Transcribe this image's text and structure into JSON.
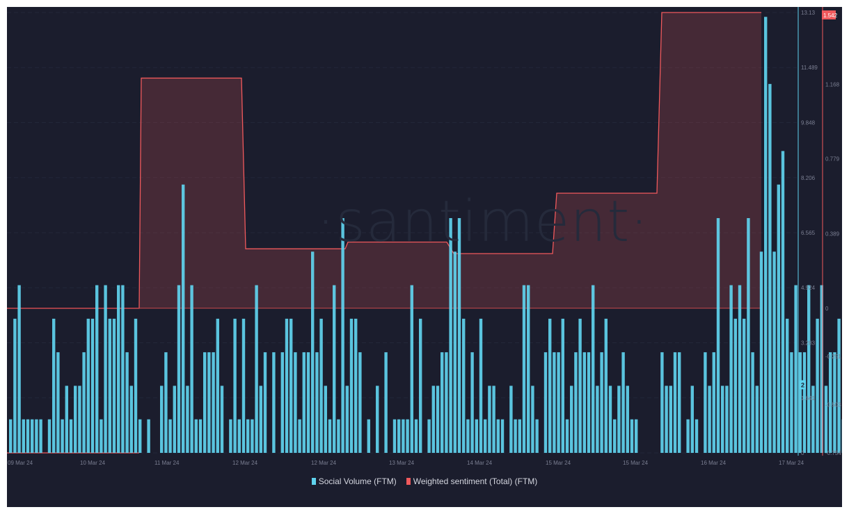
{
  "watermark": "·santiment·",
  "legend": [
    {
      "label": "Social Volume (FTM)",
      "color": "#5fd3ee"
    },
    {
      "label": "Weighted sentiment (Total) (FTM)",
      "color": "#f0595c"
    }
  ],
  "current_values": {
    "social_volume": "2",
    "weighted_sentiment": "1.542"
  },
  "chart_data": {
    "type": "bar",
    "title": "",
    "xlabel": "",
    "ylabel_left": "",
    "x_tick_labels": [
      "09 Mar 24",
      "10 Mar 24",
      "11 Mar 24",
      "12 Mar 24",
      "12 Mar 24",
      "13 Mar 24",
      "14 Mar 24",
      "15 Mar 24",
      "15 Mar 24",
      "16 Mar 24",
      "17 Mar 24"
    ],
    "y_axis_social_volume": {
      "ticks": [
        "13.13",
        "11.489",
        "9.848",
        "8.206",
        "6.565",
        "4.924",
        "3.283",
        "1.641",
        "0"
      ],
      "range": [
        0,
        13.13
      ]
    },
    "y_axis_sentiment": {
      "ticks": [
        "1.542",
        "1.168",
        "0.779",
        "0.389",
        "0",
        "-0.251",
        "-0.503",
        "-0.754"
      ],
      "range": [
        -0.754,
        1.542
      ]
    },
    "grid": true,
    "legend_position": "bottom",
    "series": [
      {
        "name": "Social Volume (FTM)",
        "type": "bar",
        "axis": "left",
        "values": [
          1,
          4,
          5,
          1,
          1,
          1,
          1,
          1,
          0,
          1,
          4,
          3,
          1,
          2,
          1,
          2,
          2,
          3,
          4,
          4,
          5,
          1,
          5,
          4,
          4,
          5,
          5,
          3,
          2,
          4,
          1,
          0,
          1,
          0,
          0,
          2,
          3,
          1,
          2,
          5,
          8,
          2,
          5,
          1,
          1,
          3,
          3,
          3,
          4,
          2,
          0,
          1,
          4,
          1,
          4,
          1,
          1,
          5,
          2,
          3,
          0,
          3,
          0,
          3,
          4,
          4,
          3,
          1,
          3,
          3,
          6,
          3,
          4,
          2,
          1,
          5,
          1,
          7,
          2,
          4,
          4,
          3,
          0,
          1,
          0,
          2,
          0,
          3,
          0,
          1,
          1,
          1,
          1,
          5,
          1,
          4,
          0,
          1,
          2,
          2,
          3,
          3,
          7,
          6,
          7,
          4,
          1,
          3,
          1,
          4,
          1,
          2,
          2,
          1,
          1,
          0,
          2,
          1,
          1,
          5,
          5,
          2,
          1,
          0,
          3,
          4,
          3,
          3,
          4,
          1,
          2,
          3,
          4,
          3,
          3,
          5,
          2,
          3,
          4,
          2,
          1,
          2,
          3,
          2,
          1,
          1,
          0,
          0,
          0,
          0,
          0,
          3,
          2,
          2,
          3,
          3,
          0,
          1,
          2,
          1,
          0,
          3,
          2,
          3,
          7,
          2,
          2,
          5,
          4,
          5,
          4,
          7,
          3,
          2,
          6,
          13,
          11,
          6,
          8,
          9,
          4,
          3,
          5,
          3,
          3,
          5,
          2,
          4,
          5,
          2,
          3,
          3,
          4,
          1,
          0,
          0,
          0,
          0,
          2,
          0,
          2
        ],
        "color": "#5fd3ee"
      },
      {
        "name": "Weighted sentiment (Total) (FTM)",
        "type": "step-area",
        "axis": "right",
        "segments": [
          {
            "from": "09 Mar 24",
            "to": "10 Mar 24 (late)",
            "value": 0
          },
          {
            "from": "10 Mar 24 (late)",
            "to": "12 Mar 24",
            "value": 1.2
          },
          {
            "from": "12 Mar 24",
            "to": "12 Mar 24 (late)",
            "value": 0.31
          },
          {
            "from": "12 Mar 24 (late)",
            "to": "13 Mar 24",
            "value": 0.34
          },
          {
            "from": "13 Mar 24",
            "to": "15 Mar 24",
            "value": 0.28
          },
          {
            "from": "15 Mar 24",
            "to": "15 Mar 24 (late)",
            "value": 0.59
          },
          {
            "from": "15 Mar 24 (late)",
            "to": "16 Mar 24 (late)",
            "value": 1.542
          }
        ],
        "color": "#f0595c"
      }
    ]
  }
}
